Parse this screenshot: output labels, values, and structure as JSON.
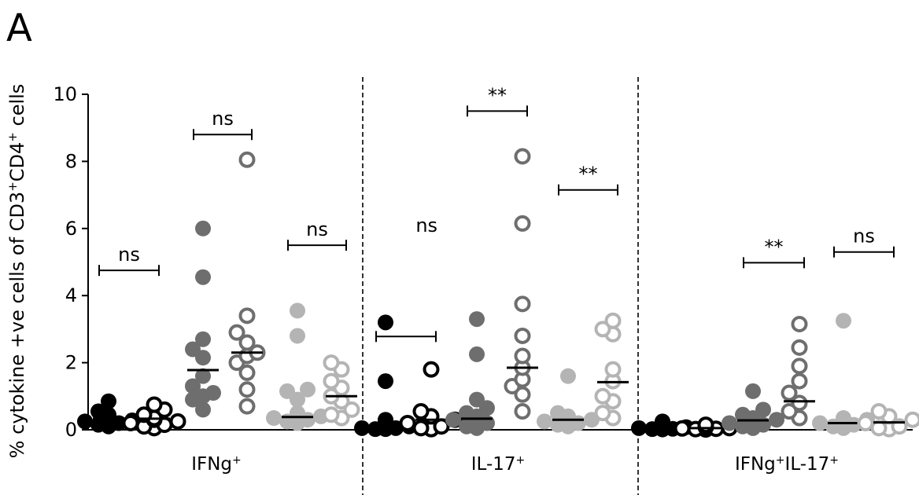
{
  "panel_label": "A",
  "chart_data": {
    "type": "scatter",
    "ylabel": "% cytokine +ve cells of CD3",
    "ylabel_sup1": "+",
    "ylabel_mid": "CD4",
    "ylabel_sup2": "+",
    "ylabel_end": " cells",
    "ylim": [
      0,
      10
    ],
    "yticks": [
      "0",
      "2",
      "4",
      "6",
      "8",
      "10"
    ],
    "colors": {
      "black": "#000000",
      "dark": "#6e6e6e",
      "light": "#b4b4b4"
    },
    "groups": [
      {
        "base": "IFNg",
        "sup1": "+",
        "mid": "",
        "sup2": "",
        "series": [
          {
            "color": "black",
            "filled": true,
            "median": 0.33,
            "values": [
              0.85,
              0.55,
              0.45,
              0.4,
              0.35,
              0.3,
              0.28,
              0.25,
              0.2,
              0.15,
              0.1
            ]
          },
          {
            "color": "black",
            "filled": false,
            "median": 0.33,
            "values": [
              0.75,
              0.6,
              0.45,
              0.35,
              0.3,
              0.25,
              0.2,
              0.15,
              0.1,
              0.05
            ]
          },
          {
            "color": "dark",
            "filled": true,
            "median": 1.78,
            "values": [
              6.0,
              4.55,
              2.7,
              2.4,
              2.15,
              1.6,
              1.3,
              1.1,
              1.0,
              0.9,
              0.6
            ]
          },
          {
            "color": "dark",
            "filled": false,
            "median": 2.3,
            "values": [
              8.05,
              3.4,
              2.9,
              2.6,
              2.3,
              2.2,
              2.0,
              1.7,
              1.2,
              0.7
            ]
          },
          {
            "color": "light",
            "filled": true,
            "median": 0.38,
            "values": [
              3.55,
              2.8,
              1.2,
              1.15,
              0.9,
              0.5,
              0.4,
              0.35,
              0.3,
              0.25,
              0.2
            ]
          },
          {
            "color": "light",
            "filled": false,
            "median": 1.0,
            "values": [
              2.0,
              1.8,
              1.45,
              1.25,
              1.0,
              0.85,
              0.6,
              0.45,
              0.35
            ]
          }
        ],
        "comparisons": [
          {
            "series": [
              0,
              1
            ],
            "y": 4.75,
            "label": "ns"
          },
          {
            "series": [
              2,
              3
            ],
            "y": 8.8,
            "label": "ns"
          },
          {
            "series": [
              4,
              5
            ],
            "y": 5.5,
            "label": "ns"
          }
        ]
      },
      {
        "base": "IL-17",
        "sup1": "+",
        "mid": "",
        "sup2": "",
        "series": [
          {
            "color": "black",
            "filled": true,
            "median": 0.15,
            "values": [
              3.2,
              1.45,
              0.3,
              0.2,
              0.15,
              0.1,
              0.05,
              0.05,
              0.02,
              0.02
            ]
          },
          {
            "color": "black",
            "filled": false,
            "median": 0.3,
            "values": [
              1.8,
              0.55,
              0.4,
              0.3,
              0.2,
              0.1,
              0.05,
              0.02
            ]
          },
          {
            "color": "dark",
            "filled": true,
            "median": 0.33,
            "values": [
              3.3,
              2.25,
              0.9,
              0.65,
              0.5,
              0.4,
              0.3,
              0.2,
              0.1,
              0.05
            ]
          },
          {
            "color": "dark",
            "filled": false,
            "median": 1.85,
            "values": [
              8.15,
              6.15,
              3.75,
              2.8,
              2.2,
              1.85,
              1.5,
              1.3,
              1.05,
              0.55
            ]
          },
          {
            "color": "light",
            "filled": true,
            "median": 0.3,
            "values": [
              1.6,
              0.5,
              0.4,
              0.35,
              0.3,
              0.25,
              0.2,
              0.15,
              0.1
            ]
          },
          {
            "color": "light",
            "filled": false,
            "median": 1.42,
            "values": [
              3.25,
              3.0,
              2.85,
              1.8,
              1.45,
              1.0,
              0.85,
              0.5,
              0.35
            ]
          }
        ],
        "comparisons": [
          {
            "series": [
              0,
              1
            ],
            "y": 2.78,
            "label": "",
            "label_x": 0.9,
            "label_text": "ns",
            "label_y": 5.9
          },
          {
            "series": [
              2,
              3
            ],
            "y": 9.5,
            "label": "**"
          },
          {
            "series": [
              4,
              5
            ],
            "y": 7.15,
            "label": "**"
          }
        ]
      },
      {
        "base": "IFNg",
        "sup1": "+",
        "mid": "IL-17",
        "sup2": "+",
        "series": [
          {
            "color": "black",
            "filled": true,
            "median": 0.05,
            "values": [
              0.25,
              0.15,
              0.1,
              0.08,
              0.05,
              0.03,
              0.02,
              0.01
            ]
          },
          {
            "color": "black",
            "filled": false,
            "median": 0.05,
            "values": [
              0.15,
              0.1,
              0.08,
              0.05,
              0.04,
              0.03,
              0.02,
              0.01
            ]
          },
          {
            "color": "dark",
            "filled": true,
            "median": 0.28,
            "values": [
              1.15,
              0.6,
              0.45,
              0.35,
              0.3,
              0.2,
              0.15,
              0.1,
              0.05
            ]
          },
          {
            "color": "dark",
            "filled": false,
            "median": 0.85,
            "values": [
              3.15,
              2.45,
              1.9,
              1.45,
              1.1,
              0.8,
              0.55,
              0.35
            ]
          },
          {
            "color": "light",
            "filled": true,
            "median": 0.2,
            "values": [
              3.25,
              0.35,
              0.3,
              0.2,
              0.15,
              0.1,
              0.05
            ]
          },
          {
            "color": "light",
            "filled": false,
            "median": 0.22,
            "values": [
              0.55,
              0.4,
              0.3,
              0.2,
              0.1,
              0.05,
              0.02
            ]
          }
        ],
        "comparisons": [
          {
            "series": [
              2,
              3
            ],
            "y": 4.98,
            "label": "**"
          },
          {
            "series": [
              4,
              5
            ],
            "y": 5.3,
            "label": "ns"
          }
        ]
      }
    ]
  }
}
